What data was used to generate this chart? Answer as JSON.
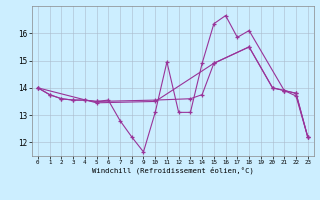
{
  "xlabel": "Windchill (Refroidissement éolien,°C)",
  "background_color": "#cceeff",
  "grid_color": "#aabbcc",
  "line_color": "#993399",
  "xlim": [
    -0.5,
    23.5
  ],
  "ylim": [
    11.5,
    17.0
  ],
  "xticks": [
    0,
    1,
    2,
    3,
    4,
    5,
    6,
    7,
    8,
    9,
    10,
    11,
    12,
    13,
    14,
    15,
    16,
    17,
    18,
    19,
    20,
    21,
    22,
    23
  ],
  "yticks": [
    12,
    13,
    14,
    15,
    16
  ],
  "line1_x": [
    0,
    1,
    2,
    3,
    4,
    5,
    6,
    7,
    8,
    9,
    10,
    11,
    12,
    13,
    14,
    15,
    16,
    17,
    18,
    21,
    22,
    23
  ],
  "line1_y": [
    14.0,
    13.75,
    13.6,
    13.55,
    13.55,
    13.5,
    13.55,
    12.8,
    12.2,
    11.65,
    13.1,
    14.95,
    13.1,
    13.1,
    14.9,
    16.35,
    16.65,
    15.85,
    16.1,
    13.9,
    13.8,
    12.2
  ],
  "line2_x": [
    0,
    1,
    2,
    3,
    4,
    5,
    10,
    13,
    14,
    15,
    18,
    20,
    21,
    22,
    23
  ],
  "line2_y": [
    14.0,
    13.75,
    13.6,
    13.55,
    13.55,
    13.5,
    13.55,
    13.6,
    13.75,
    14.9,
    15.5,
    14.0,
    13.9,
    13.8,
    12.2
  ],
  "line3_x": [
    0,
    5,
    10,
    15,
    18,
    20,
    21,
    22,
    23
  ],
  "line3_y": [
    14.0,
    13.45,
    13.5,
    14.9,
    15.5,
    14.0,
    13.9,
    13.7,
    12.2
  ]
}
